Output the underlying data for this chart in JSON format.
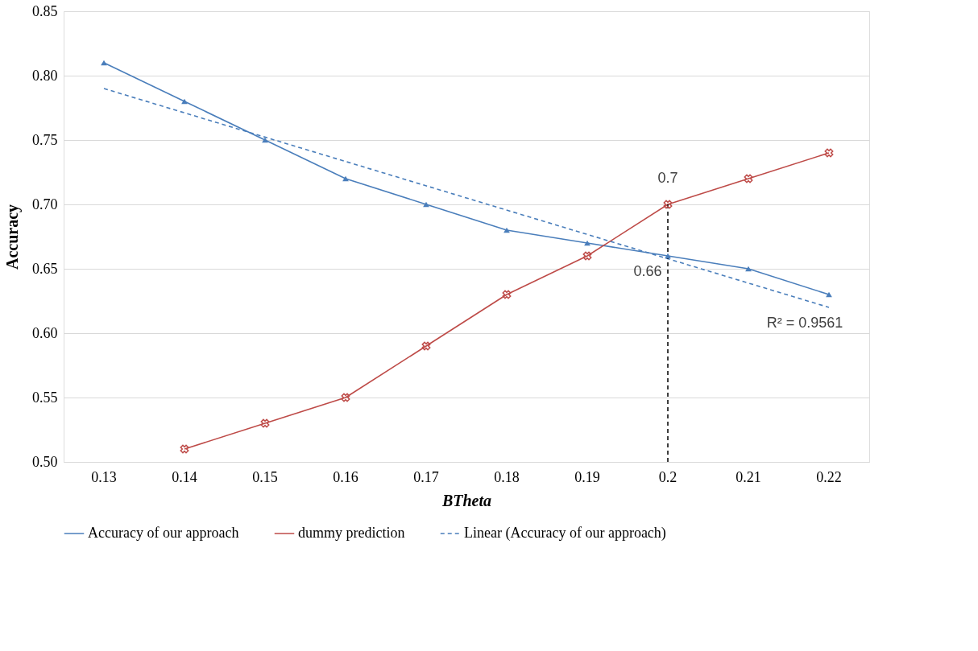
{
  "chart_data": {
    "type": "line",
    "xlabel": "BTheta",
    "ylabel": "Accuracy",
    "categories": [
      "0.13",
      "0.14",
      "0.15",
      "0.16",
      "0.17",
      "0.18",
      "0.19",
      "0.2",
      "0.21",
      "0.22"
    ],
    "series": [
      {
        "name": "Accuracy of our approach",
        "color": "#4a7ebb",
        "marker": "triangle",
        "line_style": "solid",
        "values": [
          0.81,
          0.78,
          0.75,
          0.72,
          0.7,
          0.68,
          0.67,
          0.66,
          0.65,
          0.63
        ]
      },
      {
        "name": "dummy prediction",
        "color": "#be4b48",
        "marker": "cross",
        "line_style": "solid",
        "values": [
          null,
          0.51,
          0.53,
          0.55,
          0.59,
          0.63,
          0.66,
          0.7,
          0.72,
          0.74
        ]
      },
      {
        "name": "Linear (Accuracy of our approach)",
        "color": "#4a7ebb",
        "marker": "none",
        "line_style": "dashed",
        "x": [
          "0.13",
          "0.22"
        ],
        "values": [
          0.79,
          0.62
        ]
      }
    ],
    "ylim": [
      0.5,
      0.85
    ],
    "yticks": [
      {
        "value": 0.5,
        "label": "0.50"
      },
      0.55,
      {
        "value": 0.6,
        "label": "0.60"
      },
      0.65,
      {
        "value": 0.7,
        "label": "0.70"
      },
      0.75,
      {
        "value": 0.8,
        "label": "0.80"
      },
      0.85
    ],
    "grid": "y",
    "legend": "bottom",
    "ref_lines": [
      {
        "axis": "x",
        "value": "0.2",
        "color": "#000000",
        "line_style": "dashed"
      }
    ],
    "annotations": [
      {
        "text": "0.7",
        "x": "0.2",
        "y": 0.7
      },
      {
        "text": "0.66",
        "x": "0.2",
        "y": 0.66
      },
      {
        "text": "R² = 0.9561",
        "x": "0.22",
        "y": 0.62
      }
    ]
  }
}
